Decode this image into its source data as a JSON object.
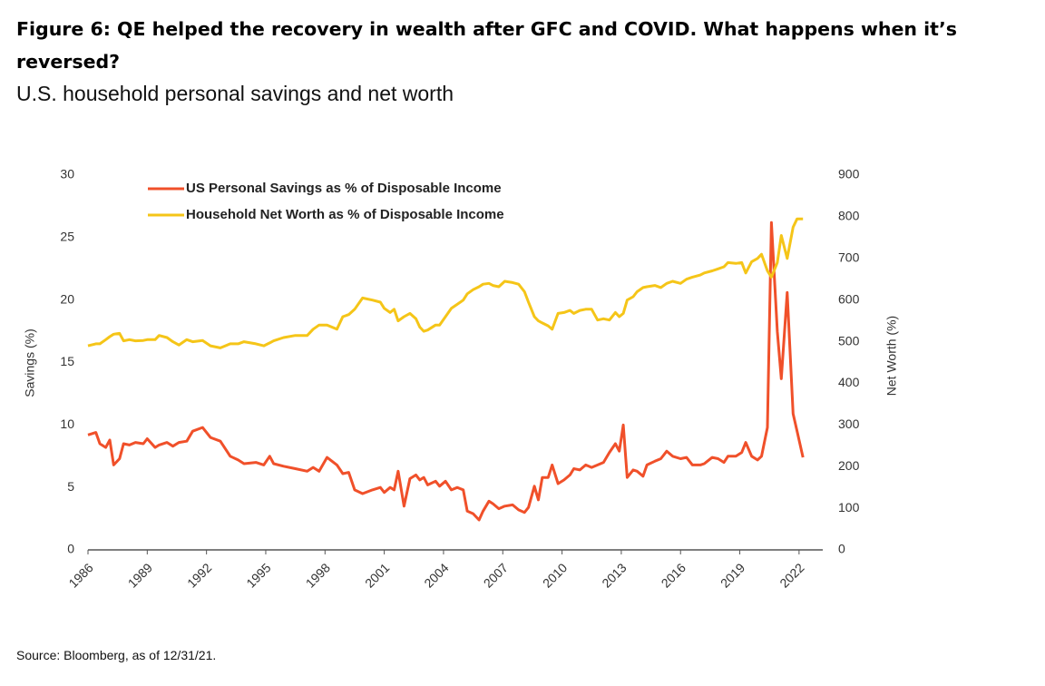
{
  "chart_data": {
    "type": "line",
    "title": "Figure 6: QE helped the recovery in wealth after GFC and COVID. What happens when it’s reversed?",
    "subtitle": "U.S. household personal savings and net worth",
    "source": "Source: Bloomberg, as of 12/31/21.",
    "ylabel": "Savings (%)",
    "y2label": "Net Worth (%)",
    "legend": "upper left",
    "xlim": [
      1986,
      2023.2
    ],
    "xticks": [
      1986,
      1989,
      1992,
      1995,
      1998,
      2001,
      2004,
      2007,
      2010,
      2013,
      2016,
      2019,
      2022
    ],
    "ylim": [
      0,
      30
    ],
    "yticks": [
      0,
      5,
      10,
      15,
      20,
      25,
      30
    ],
    "y2lim": [
      0,
      900
    ],
    "y2ticks": [
      0,
      100,
      200,
      300,
      400,
      500,
      600,
      700,
      800,
      900
    ],
    "x": [
      1986.0,
      1986.4,
      1986.6,
      1986.9,
      1987.1,
      1987.3,
      1987.6,
      1987.8,
      1988.1,
      1988.4,
      1988.8,
      1989.0,
      1989.4,
      1989.6,
      1990.0,
      1990.3,
      1990.6,
      1991.0,
      1991.3,
      1991.8,
      1992.2,
      1992.7,
      1993.2,
      1993.6,
      1993.9,
      1994.5,
      1994.9,
      1995.2,
      1995.4,
      1995.9,
      1996.5,
      1997.1,
      1997.4,
      1997.7,
      1998.1,
      1998.6,
      1998.9,
      1999.2,
      1999.5,
      1999.9,
      2000.4,
      2000.8,
      2001.0,
      2001.3,
      2001.5,
      2001.7,
      2002.0,
      2002.3,
      2002.6,
      2002.8,
      2003.0,
      2003.2,
      2003.6,
      2003.8,
      2004.1,
      2004.4,
      2004.7,
      2005.0,
      2005.2,
      2005.5,
      2005.8,
      2006.0,
      2006.3,
      2006.5,
      2006.8,
      2007.1,
      2007.5,
      2007.8,
      2008.1,
      2008.3,
      2008.6,
      2008.8,
      2009.0,
      2009.3,
      2009.5,
      2009.8,
      2010.1,
      2010.4,
      2010.6,
      2010.9,
      2011.2,
      2011.5,
      2011.8,
      2012.1,
      2012.4,
      2012.7,
      2012.9,
      2013.1,
      2013.3,
      2013.6,
      2013.8,
      2014.1,
      2014.3,
      2014.7,
      2015.0,
      2015.3,
      2015.6,
      2016.0,
      2016.3,
      2016.6,
      2017.0,
      2017.2,
      2017.6,
      2017.9,
      2018.2,
      2018.4,
      2018.8,
      2019.1,
      2019.3,
      2019.6,
      2019.9,
      2020.1,
      2020.4,
      2020.6,
      2020.9,
      2021.1,
      2021.4,
      2021.7,
      2021.9,
      2022.2
    ],
    "series": [
      {
        "name": "US Personal Savings as % of Disposable Income",
        "color": "#f0502a",
        "values": [
          9.2,
          9.4,
          8.5,
          8.2,
          8.8,
          6.8,
          7.3,
          8.5,
          8.4,
          8.6,
          8.5,
          8.9,
          8.2,
          8.4,
          8.6,
          8.3,
          8.6,
          8.7,
          9.5,
          9.8,
          9.0,
          8.7,
          7.5,
          7.2,
          6.9,
          7.0,
          6.8,
          7.5,
          6.9,
          6.7,
          6.5,
          6.3,
          6.6,
          6.3,
          7.4,
          6.8,
          6.1,
          6.2,
          4.8,
          4.5,
          4.8,
          5.0,
          4.6,
          5.0,
          4.8,
          6.3,
          3.5,
          5.7,
          6.0,
          5.6,
          5.8,
          5.2,
          5.5,
          5.1,
          5.5,
          4.8,
          5.0,
          4.8,
          3.1,
          2.9,
          2.4,
          3.1,
          3.9,
          3.7,
          3.3,
          3.5,
          3.6,
          3.2,
          3.0,
          3.4,
          5.1,
          4.0,
          5.8,
          5.8,
          6.8,
          5.3,
          5.6,
          6.0,
          6.5,
          6.4,
          6.8,
          6.6,
          6.8,
          7.0,
          7.8,
          8.5,
          7.9,
          10.0,
          5.8,
          6.4,
          6.3,
          5.9,
          6.8,
          7.1,
          7.3,
          7.9,
          7.5,
          7.3,
          7.4,
          6.8,
          6.8,
          6.9,
          7.4,
          7.3,
          7.0,
          7.5,
          7.5,
          7.8,
          8.6,
          7.5,
          7.2,
          7.5,
          9.8,
          26.2,
          17.5,
          13.7,
          20.6,
          10.9,
          9.5,
          7.4
        ]
      },
      {
        "name": "Household Net Worth as % of Disposable Income",
        "color": "#f5c518",
        "axis": "y2",
        "values": [
          490,
          495,
          495,
          505,
          512,
          518,
          520,
          502,
          505,
          502,
          503,
          505,
          505,
          515,
          510,
          500,
          492,
          505,
          500,
          503,
          490,
          485,
          495,
          495,
          500,
          495,
          490,
          497,
          502,
          510,
          515,
          515,
          530,
          540,
          540,
          530,
          560,
          565,
          578,
          605,
          600,
          595,
          580,
          570,
          578,
          550,
          560,
          568,
          555,
          535,
          525,
          528,
          540,
          540,
          560,
          580,
          590,
          600,
          615,
          625,
          632,
          638,
          640,
          635,
          632,
          645,
          642,
          638,
          620,
          595,
          560,
          550,
          545,
          538,
          530,
          568,
          570,
          575,
          568,
          575,
          578,
          578,
          552,
          555,
          552,
          570,
          560,
          568,
          600,
          608,
          620,
          630,
          632,
          635,
          630,
          640,
          645,
          640,
          650,
          655,
          660,
          665,
          670,
          675,
          680,
          690,
          688,
          690,
          665,
          692,
          700,
          710,
          670,
          655,
          690,
          755,
          700,
          775,
          795,
          795
        ]
      }
    ]
  }
}
